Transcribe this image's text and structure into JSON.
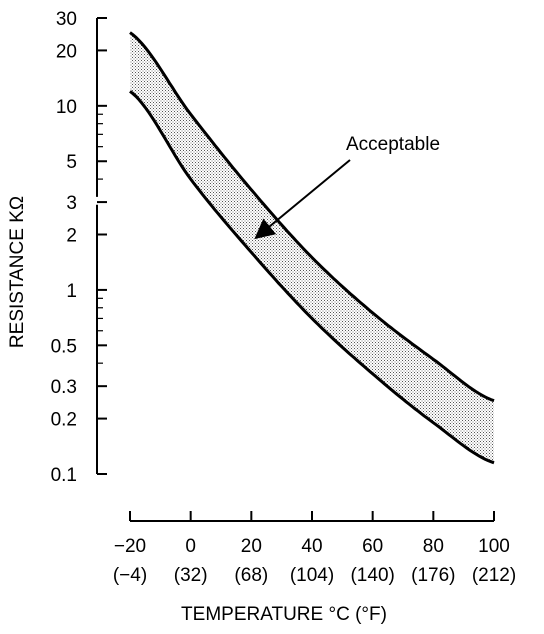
{
  "chart_data": {
    "type": "area",
    "title": "",
    "xlabel": "TEMPERATURE °C (°F)",
    "ylabel": "RESISTANCE KΩ",
    "y_scale": "log",
    "xlim": [
      -20,
      100
    ],
    "ylim": [
      0.1,
      30
    ],
    "x_ticks": [
      {
        "value": -20,
        "label": "−20",
        "sublabel": "(−4)"
      },
      {
        "value": 0,
        "label": "0",
        "sublabel": "(32)"
      },
      {
        "value": 20,
        "label": "20",
        "sublabel": "(68)"
      },
      {
        "value": 40,
        "label": "40",
        "sublabel": "(104)"
      },
      {
        "value": 60,
        "label": "60",
        "sublabel": "(140)"
      },
      {
        "value": 80,
        "label": "80",
        "sublabel": "(176)"
      },
      {
        "value": 100,
        "label": "100",
        "sublabel": "(212)"
      }
    ],
    "y_ticks": [
      {
        "value": 30,
        "label": "30"
      },
      {
        "value": 20,
        "label": "20"
      },
      {
        "value": 10,
        "label": "10"
      },
      {
        "value": 5,
        "label": "5"
      },
      {
        "value": 3,
        "label": "3"
      },
      {
        "value": 2,
        "label": "2"
      },
      {
        "value": 1,
        "label": "1"
      },
      {
        "value": 0.5,
        "label": "0.5"
      },
      {
        "value": 0.3,
        "label": "0.3"
      },
      {
        "value": 0.2,
        "label": "0.2"
      },
      {
        "value": 0.1,
        "label": "0.1"
      }
    ],
    "y_minor_ticks": [
      4,
      6,
      7,
      8,
      9,
      0.4,
      0.6,
      0.7,
      0.8,
      0.9
    ],
    "grid": false,
    "series": [
      {
        "x": [
          -20,
          0,
          20,
          40,
          60,
          80,
          100
        ],
        "y": [
          25,
          9.0,
          3.5,
          1.5,
          0.75,
          0.42,
          0.25
        ]
      },
      {
        "x": [
          -20,
          0,
          20,
          40,
          60,
          80,
          100
        ],
        "y": [
          12,
          4.0,
          1.6,
          0.7,
          0.35,
          0.19,
          0.115
        ]
      }
    ],
    "band_between_series": true,
    "annotations": [
      {
        "text": "Acceptable",
        "arrow_to": {
          "x": 22,
          "y": 1.95
        }
      }
    ]
  }
}
